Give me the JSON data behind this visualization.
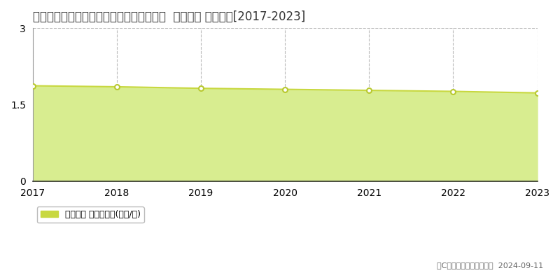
{
  "title": "青森県東津軽郡外ヶ浜町字蟹田１１５番５  地価公示 地価推移[2017-2023]",
  "years": [
    2017,
    2018,
    2019,
    2020,
    2021,
    2022,
    2023
  ],
  "values": [
    1.87,
    1.85,
    1.82,
    1.8,
    1.78,
    1.76,
    1.73
  ],
  "ylim": [
    0,
    3
  ],
  "yticks": [
    0,
    1.5,
    3
  ],
  "line_color": "#c8d840",
  "fill_color": "#d8ed90",
  "marker_color": "#ffffff",
  "marker_edge_color": "#b8c830",
  "bg_color": "#ffffff",
  "grid_color": "#bbbbbb",
  "legend_label": "地価公示 平均坪単価(万円/坪)",
  "legend_marker_color": "#c8d840",
  "copyright_text": "（C）土地価格ドットコム  2024-09-11",
  "title_fontsize": 12,
  "tick_fontsize": 10,
  "legend_fontsize": 9,
  "copyright_fontsize": 8
}
